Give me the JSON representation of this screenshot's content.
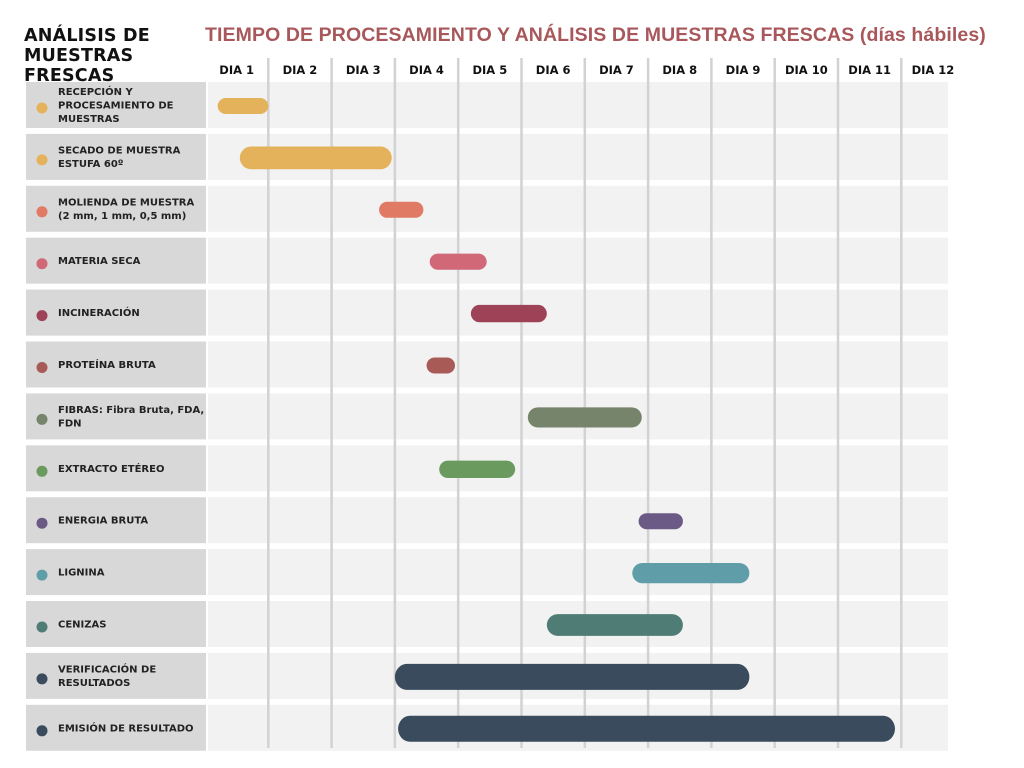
{
  "header": {
    "side_title": "ANÁLISIS DE\nMUESTRAS FRESCAS",
    "main_title": "TIEMPO DE PROCESAMIENTO Y ANÁLISIS DE MUESTRAS  FRESCAS (días hábiles)"
  },
  "chart_data": {
    "type": "gantt",
    "title": "TIEMPO DE PROCESAMIENTO Y ANÁLISIS DE MUESTRAS  FRESCAS (días hábiles)",
    "x_unit": "días hábiles",
    "days": [
      "DIA 1",
      "DIA 2",
      "DIA 3",
      "DIA 4",
      "DIA 5",
      "DIA 6",
      "DIA 7",
      "DIA 8",
      "DIA 9",
      "DIA 10",
      "DIA 11",
      "DIA 12"
    ],
    "xlim": [
      0,
      11.8
    ],
    "grid": true,
    "tasks": [
      {
        "label": [
          "RECEPCIÓN Y",
          "PROCESAMIENTO DE",
          "MUESTRAS"
        ],
        "start": 0.2,
        "end": 1.0,
        "color": "#e3b25b"
      },
      {
        "label": [
          "SECADO DE MUESTRA",
          "ESTUFA 60º"
        ],
        "start": 0.55,
        "end": 2.95,
        "color": "#e3b25b"
      },
      {
        "label": [
          "MOLIENDA DE MUESTRA",
          "(2 mm, 1 mm, 0,5 mm)"
        ],
        "start": 2.75,
        "end": 3.45,
        "color": "#e07a64"
      },
      {
        "label": [
          "MATERIA SECA"
        ],
        "start": 3.55,
        "end": 4.45,
        "color": "#d06878"
      },
      {
        "label": [
          "INCINERACIÓN"
        ],
        "start": 4.2,
        "end": 5.4,
        "color": "#9e4258"
      },
      {
        "label": [
          "PROTEÍNA BRUTA"
        ],
        "start": 3.5,
        "end": 3.95,
        "color": "#a85a57"
      },
      {
        "label": [
          "FIBRAS: Fibra Bruta, FDA,",
          "FDN"
        ],
        "start": 5.1,
        "end": 6.9,
        "color": "#75846a"
      },
      {
        "label": [
          "EXTRACTO ETÉREO"
        ],
        "start": 3.7,
        "end": 4.9,
        "color": "#6a9a5e"
      },
      {
        "label": [
          "ENERGIA BRUTA"
        ],
        "start": 6.85,
        "end": 7.55,
        "color": "#6c5a86"
      },
      {
        "label": [
          "LIGNINA"
        ],
        "start": 6.75,
        "end": 8.6,
        "color": "#5f9ea8"
      },
      {
        "label": [
          "CENIZAS"
        ],
        "start": 5.4,
        "end": 7.55,
        "color": "#4f7d75"
      },
      {
        "label": [
          "VERIFICACIÓN DE",
          "RESULTADOS"
        ],
        "start": 3.0,
        "end": 8.6,
        "color": "#394b5c"
      },
      {
        "label": [
          "EMISIÓN DE RESULTADO"
        ],
        "start": 3.05,
        "end": 10.9,
        "color": "#394b5c"
      }
    ]
  }
}
